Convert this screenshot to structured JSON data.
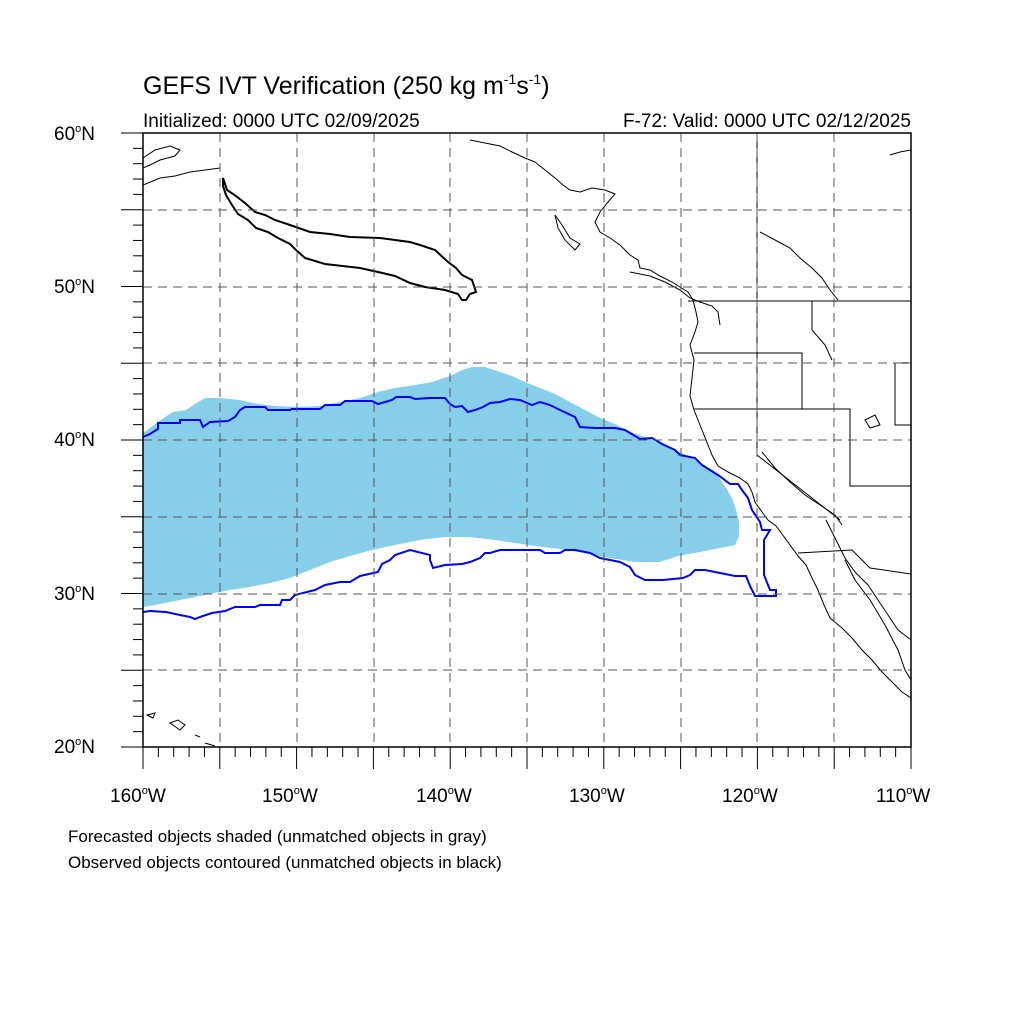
{
  "header": {
    "title_main": "GEFS IVT Verification (250 kg m",
    "title_exp1": "-1",
    "title_mid": "s",
    "title_exp2": "-1",
    "title_end": ")",
    "initialized": "Initialized: 0000 UTC 02/09/2025",
    "valid": "F-72: Valid: 0000 UTC 02/12/2025"
  },
  "axes": {
    "lat_labels": [
      {
        "num": "60",
        "deg": "o",
        "hemi": "N"
      },
      {
        "num": "50",
        "deg": "o",
        "hemi": "N"
      },
      {
        "num": "40",
        "deg": "o",
        "hemi": "N"
      },
      {
        "num": "30",
        "deg": "o",
        "hemi": "N"
      },
      {
        "num": "20",
        "deg": "o",
        "hemi": "N"
      }
    ],
    "lon_labels": [
      {
        "num": "160",
        "deg": "o",
        "hemi": "W"
      },
      {
        "num": "150",
        "deg": "o",
        "hemi": "W"
      },
      {
        "num": "140",
        "deg": "o",
        "hemi": "W"
      },
      {
        "num": "130",
        "deg": "o",
        "hemi": "W"
      },
      {
        "num": "120",
        "deg": "o",
        "hemi": "W"
      },
      {
        "num": "110",
        "deg": "o",
        "hemi": "W"
      }
    ],
    "lat_range": [
      20,
      60
    ],
    "lon_range": [
      -160,
      -110
    ],
    "grid": true
  },
  "footer": {
    "line1": "Forecasted objects shaded (unmatched objects in gray)",
    "line2": "Observed objects contoured (unmatched objects in black)"
  },
  "colors": {
    "forecast_fill": "#87ceeb",
    "observed_matched": "#0000ff",
    "observed_unmatched": "#000000",
    "coastline": "#000000",
    "grid": "#555555"
  }
}
